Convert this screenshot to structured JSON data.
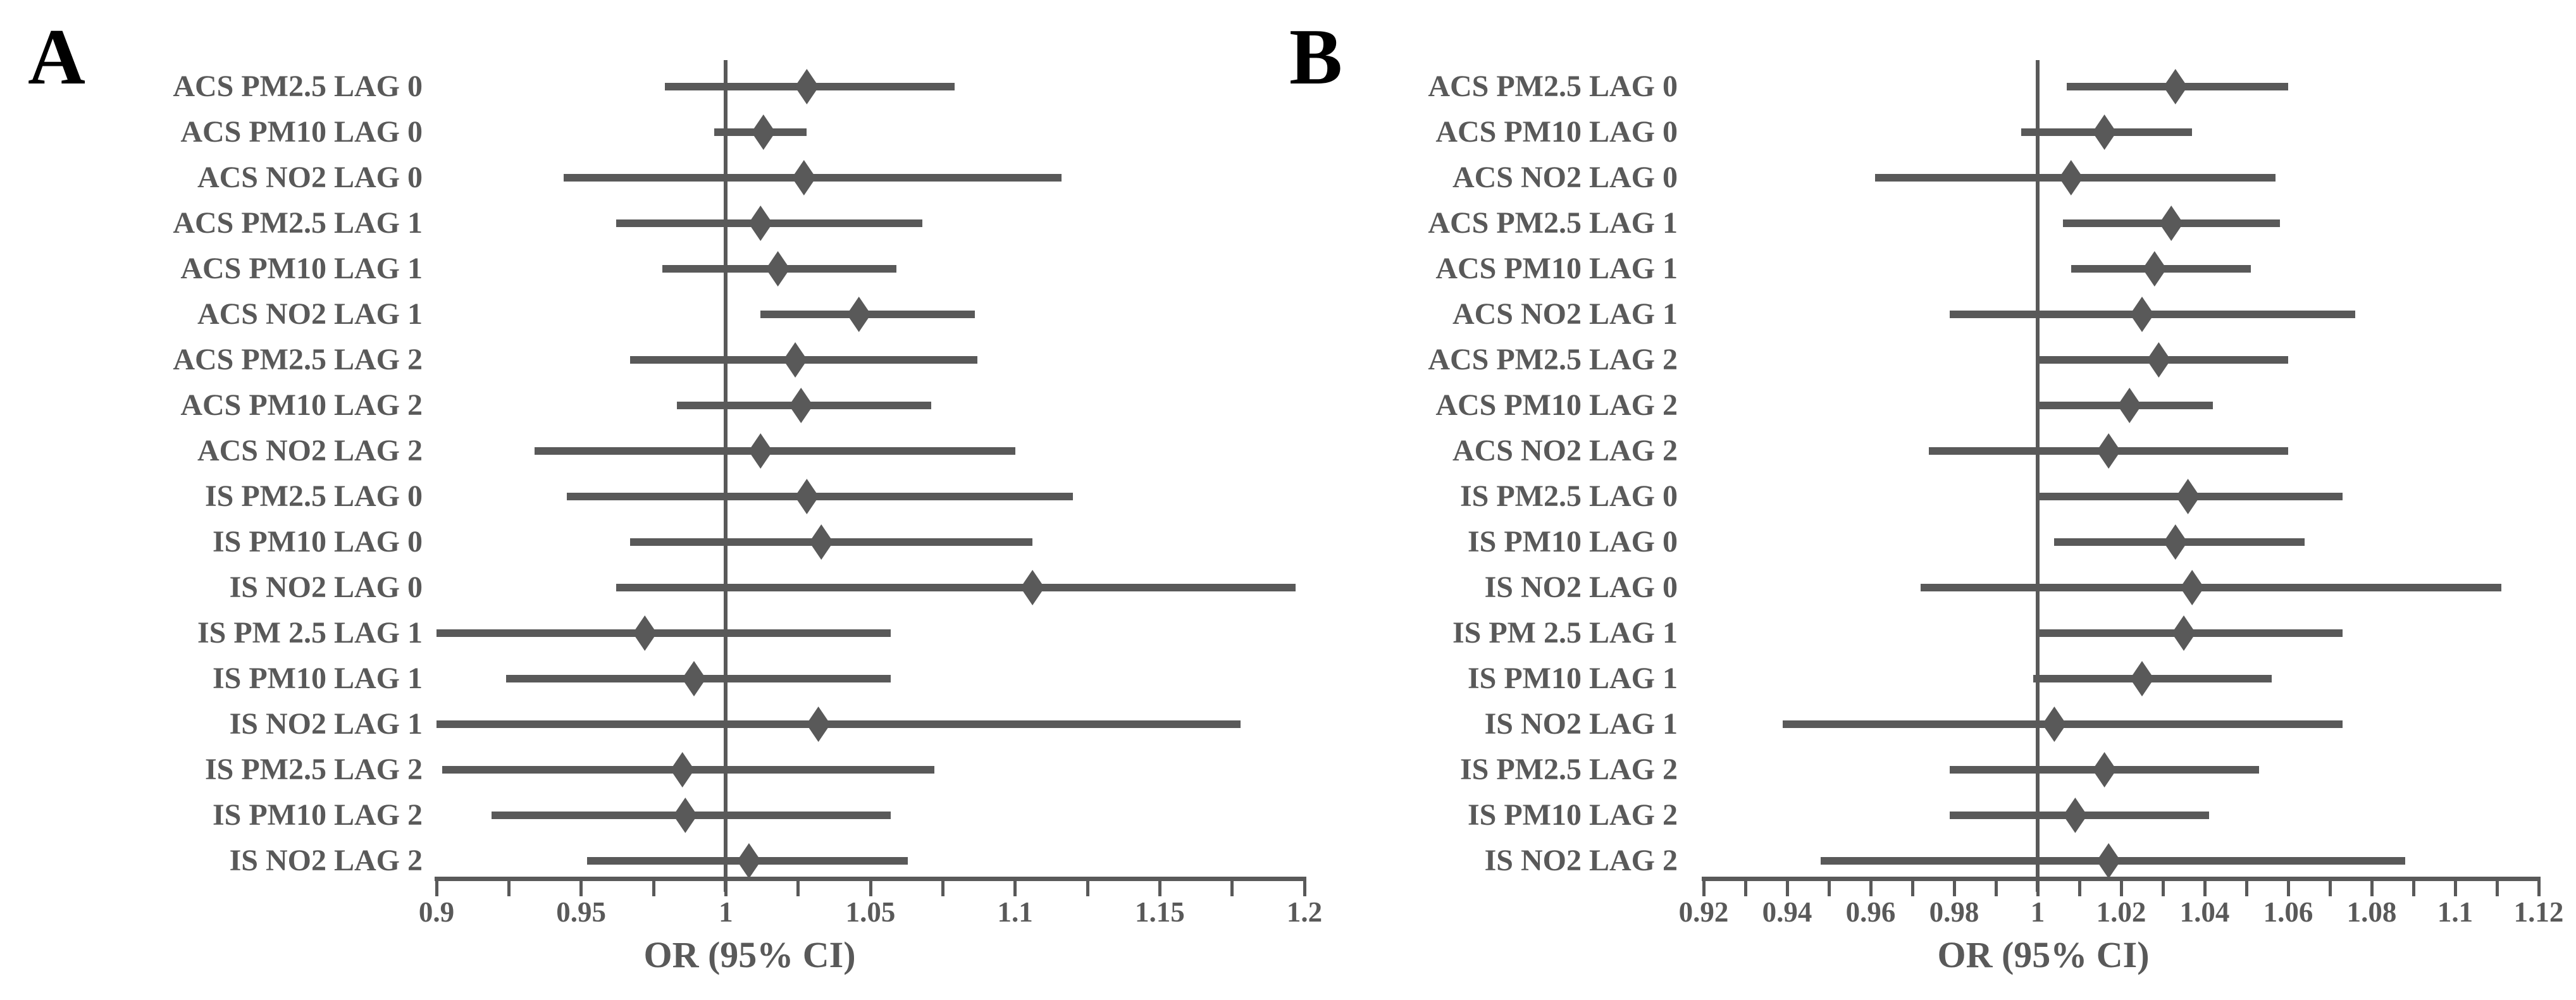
{
  "chart_data": [
    {
      "type": "scatter",
      "variant": "forest-plot",
      "panel_letter": "A",
      "xlabel": "OR (95% CI)",
      "legend": "none",
      "grid": false,
      "x_axis": {
        "min": 0.9,
        "max": 1.2,
        "minor_tick_step": 0.025,
        "reference_line": 1,
        "major_ticks": [
          {
            "value": 0.9,
            "label": "0.9"
          },
          {
            "value": 0.95,
            "label": "0.95"
          },
          {
            "value": 1,
            "label": "1"
          },
          {
            "value": 1.05,
            "label": "1.05"
          },
          {
            "value": 1.1,
            "label": "1.1"
          },
          {
            "value": 1.15,
            "label": "1.15"
          },
          {
            "value": 1.2,
            "label": "1.2"
          }
        ]
      },
      "rows": [
        {
          "label": "ACS PM2.5 LAG 0",
          "or": 1.028,
          "ci_low": 0.979,
          "ci_high": 1.079
        },
        {
          "label": "ACS PM10 LAG 0",
          "or": 1.013,
          "ci_low": 0.996,
          "ci_high": 1.028
        },
        {
          "label": "ACS NO2 LAG 0",
          "or": 1.027,
          "ci_low": 0.944,
          "ci_high": 1.116
        },
        {
          "label": "ACS PM2.5 LAG 1",
          "or": 1.012,
          "ci_low": 0.962,
          "ci_high": 1.068
        },
        {
          "label": "ACS PM10 LAG 1",
          "or": 1.018,
          "ci_low": 0.978,
          "ci_high": 1.059
        },
        {
          "label": "ACS NO2 LAG 1",
          "or": 1.046,
          "ci_low": 1.012,
          "ci_high": 1.086
        },
        {
          "label": "ACS PM2.5 LAG 2",
          "or": 1.024,
          "ci_low": 0.967,
          "ci_high": 1.087
        },
        {
          "label": "ACS PM10 LAG 2",
          "or": 1.026,
          "ci_low": 0.983,
          "ci_high": 1.071
        },
        {
          "label": "ACS NO2 LAG 2",
          "or": 1.012,
          "ci_low": 0.934,
          "ci_high": 1.1
        },
        {
          "label": "IS PM2.5 LAG 0",
          "or": 1.028,
          "ci_low": 0.945,
          "ci_high": 1.12
        },
        {
          "label": "IS PM10 LAG 0",
          "or": 1.033,
          "ci_low": 0.967,
          "ci_high": 1.106
        },
        {
          "label": "IS NO2 LAG 0",
          "or": 1.106,
          "ci_low": 0.962,
          "ci_high": 1.197
        },
        {
          "label": "IS PM 2.5 LAG 1",
          "or": 0.972,
          "ci_low": 0.9,
          "ci_high": 1.057
        },
        {
          "label": "IS PM10 LAG 1",
          "or": 0.989,
          "ci_low": 0.924,
          "ci_high": 1.057
        },
        {
          "label": "IS NO2 LAG 1",
          "or": 1.032,
          "ci_low": 0.9,
          "ci_high": 1.178
        },
        {
          "label": "IS PM2.5 LAG 2",
          "or": 0.985,
          "ci_low": 0.902,
          "ci_high": 1.072
        },
        {
          "label": "IS PM10 LAG 2",
          "or": 0.986,
          "ci_low": 0.919,
          "ci_high": 1.057
        },
        {
          "label": "IS NO2 LAG 2",
          "or": 1.008,
          "ci_low": 0.952,
          "ci_high": 1.063
        }
      ]
    },
    {
      "type": "scatter",
      "variant": "forest-plot",
      "panel_letter": "B",
      "xlabel": "OR (95% CI)",
      "legend": "none",
      "grid": false,
      "x_axis": {
        "min": 0.92,
        "max": 1.12,
        "minor_tick_step": 0.01,
        "reference_line": 1,
        "major_ticks": [
          {
            "value": 0.92,
            "label": "0.92"
          },
          {
            "value": 0.94,
            "label": "0.94"
          },
          {
            "value": 0.96,
            "label": "0.96"
          },
          {
            "value": 0.98,
            "label": "0.98"
          },
          {
            "value": 1,
            "label": "1"
          },
          {
            "value": 1.02,
            "label": "1.02"
          },
          {
            "value": 1.04,
            "label": "1.04"
          },
          {
            "value": 1.06,
            "label": "1.06"
          },
          {
            "value": 1.08,
            "label": "1.08"
          },
          {
            "value": 1.1,
            "label": "1.1"
          },
          {
            "value": 1.12,
            "label": "1.12"
          }
        ]
      },
      "rows": [
        {
          "label": "ACS PM2.5 LAG 0",
          "or": 1.033,
          "ci_low": 1.007,
          "ci_high": 1.06
        },
        {
          "label": "ACS PM10 LAG 0",
          "or": 1.016,
          "ci_low": 0.996,
          "ci_high": 1.037
        },
        {
          "label": "ACS NO2 LAG 0",
          "or": 1.008,
          "ci_low": 0.961,
          "ci_high": 1.057
        },
        {
          "label": "ACS PM2.5 LAG 1",
          "or": 1.032,
          "ci_low": 1.006,
          "ci_high": 1.058
        },
        {
          "label": "ACS PM10 LAG 1",
          "or": 1.028,
          "ci_low": 1.008,
          "ci_high": 1.051
        },
        {
          "label": "ACS NO2 LAG 1",
          "or": 1.025,
          "ci_low": 0.979,
          "ci_high": 1.076
        },
        {
          "label": "ACS PM2.5 LAG 2",
          "or": 1.029,
          "ci_low": 1.0,
          "ci_high": 1.06
        },
        {
          "label": "ACS PM10 LAG 2",
          "or": 1.022,
          "ci_low": 1.0,
          "ci_high": 1.042
        },
        {
          "label": "ACS NO2 LAG 2",
          "or": 1.017,
          "ci_low": 0.974,
          "ci_high": 1.06
        },
        {
          "label": "IS PM2.5 LAG 0",
          "or": 1.036,
          "ci_low": 1.0,
          "ci_high": 1.073
        },
        {
          "label": "IS PM10 LAG 0",
          "or": 1.033,
          "ci_low": 1.004,
          "ci_high": 1.064
        },
        {
          "label": "IS NO2 LAG 0",
          "or": 1.037,
          "ci_low": 0.972,
          "ci_high": 1.111
        },
        {
          "label": "IS PM 2.5 LAG 1",
          "or": 1.035,
          "ci_low": 1.0,
          "ci_high": 1.073
        },
        {
          "label": "IS PM10 LAG 1",
          "or": 1.025,
          "ci_low": 0.999,
          "ci_high": 1.056
        },
        {
          "label": "IS NO2 LAG 1",
          "or": 1.004,
          "ci_low": 0.939,
          "ci_high": 1.073
        },
        {
          "label": "IS PM2.5 LAG 2",
          "or": 1.016,
          "ci_low": 0.979,
          "ci_high": 1.053
        },
        {
          "label": "IS PM10 LAG 2",
          "or": 1.009,
          "ci_low": 0.979,
          "ci_high": 1.041
        },
        {
          "label": "IS NO2 LAG 2",
          "or": 1.017,
          "ci_low": 0.948,
          "ci_high": 1.088
        }
      ]
    }
  ],
  "colors": {
    "marker": "#595959",
    "text": "#595959",
    "panel_letter": "#000000",
    "background": "#ffffff"
  }
}
